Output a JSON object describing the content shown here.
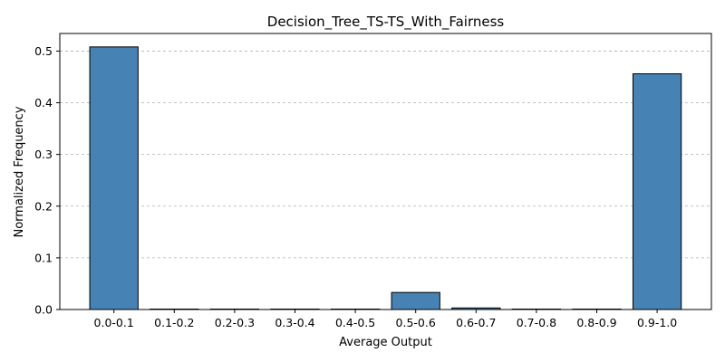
{
  "chart_data": {
    "type": "bar",
    "title": "Decision_Tree_TS-TS_With_Fairness",
    "xlabel": "Average Output",
    "ylabel": "Normalized Frequency",
    "categories": [
      "0.0-0.1",
      "0.1-0.2",
      "0.2-0.3",
      "0.3-0.4",
      "0.4-0.5",
      "0.5-0.6",
      "0.6-0.7",
      "0.7-0.8",
      "0.8-0.9",
      "0.9-1.0"
    ],
    "values": [
      0.508,
      0.0,
      0.0,
      0.0,
      0.0,
      0.033,
      0.003,
      0.0,
      0.0,
      0.456
    ],
    "ylim": [
      0,
      0.534
    ],
    "yticks": [
      "0.0",
      "0.1",
      "0.2",
      "0.3",
      "0.4",
      "0.5"
    ],
    "grid": "y-dashed",
    "bar_color": "#4682b4",
    "edge_color": "#000000"
  }
}
